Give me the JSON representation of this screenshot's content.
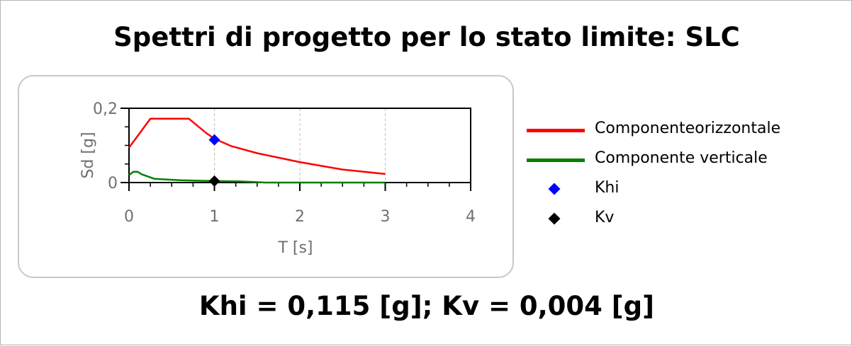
{
  "title": "Spettri di progetto per lo stato limite: SLC",
  "footer": "Khi = 0,115 [g]; Kv = 0,004 [g]",
  "colors": {
    "horizontal": "#ff0000",
    "vertical": "#008000",
    "khi": "#0000ff",
    "kv": "#000000"
  },
  "chart_data": {
    "type": "line",
    "xlabel": "T [s]",
    "ylabel": "Sd [g]",
    "xlim": [
      0,
      4
    ],
    "ylim": [
      0,
      0.2
    ],
    "xticks": [
      0,
      1,
      2,
      3,
      4
    ],
    "xtick_labels": [
      "0",
      "1",
      "2",
      "3",
      "4"
    ],
    "yticks": [
      0,
      0.2
    ],
    "ytick_labels": [
      "0",
      "0,2"
    ],
    "grid": "vertical dashed",
    "legend_position": "right",
    "series": [
      {
        "name": "Componenteorizzontale",
        "color": "#ff0000",
        "x": [
          0,
          0.25,
          0.7,
          0.9,
          1.0,
          1.2,
          1.5,
          2.0,
          2.5,
          3.0
        ],
        "y": [
          0.094,
          0.172,
          0.172,
          0.134,
          0.118,
          0.098,
          0.079,
          0.055,
          0.035,
          0.023
        ]
      },
      {
        "name": "Componente verticale",
        "color": "#008000",
        "x": [
          0,
          0.05,
          0.1,
          0.15,
          0.3,
          0.6,
          1.0,
          1.3,
          1.6,
          2.0,
          3.0
        ],
        "y": [
          0.02,
          0.029,
          0.029,
          0.022,
          0.01,
          0.006,
          0.004,
          0.003,
          0.0,
          0.0,
          0.0
        ]
      }
    ],
    "markers": [
      {
        "name": "Khi",
        "x": 1.0,
        "y": 0.115,
        "color": "#0000ff",
        "shape": "diamond"
      },
      {
        "name": "Kv",
        "x": 1.0,
        "y": 0.004,
        "color": "#000000",
        "shape": "diamond"
      }
    ]
  }
}
